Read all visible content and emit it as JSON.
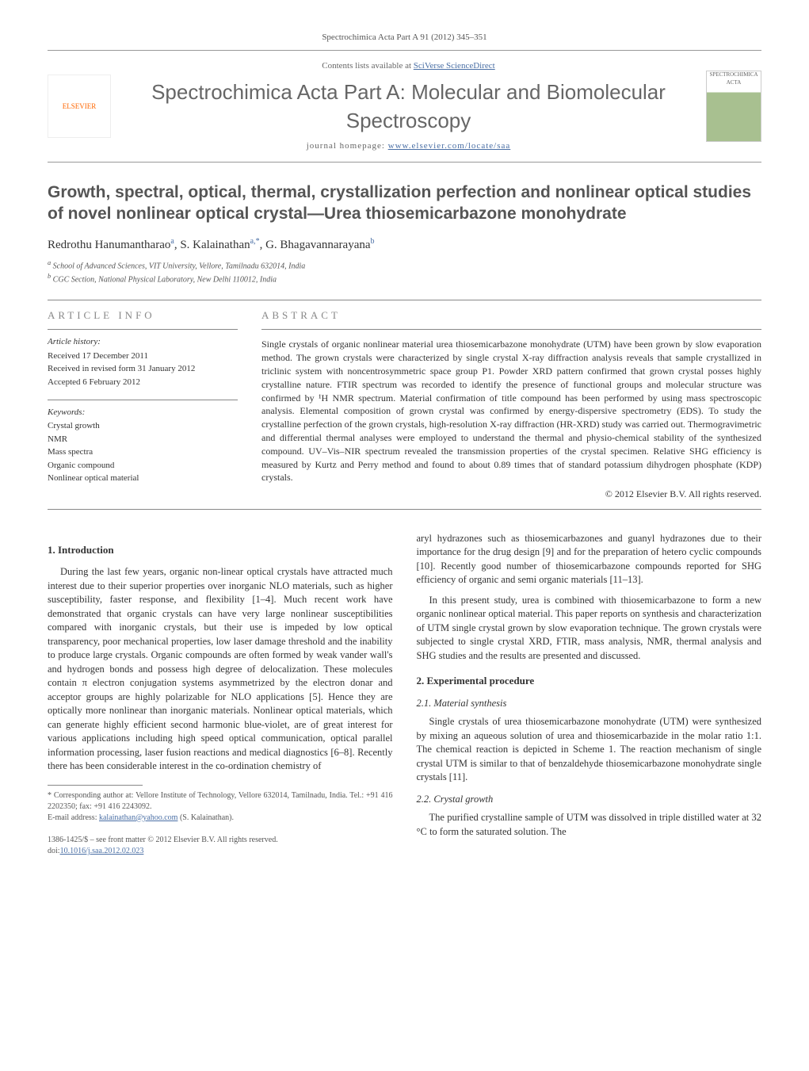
{
  "journal_ref": "Spectrochimica Acta Part A 91 (2012) 345–351",
  "header": {
    "contents_pre": "Contents lists available at ",
    "contents_link": "SciVerse ScienceDirect",
    "journal_title": "Spectrochimica Acta Part A: Molecular and Biomolecular Spectroscopy",
    "homepage_pre": "journal homepage: ",
    "homepage_link": "www.elsevier.com/locate/saa",
    "elsevier_label": "ELSEVIER",
    "cover_label": "SPECTROCHIMICA ACTA"
  },
  "title": "Growth, spectral, optical, thermal, crystallization perfection and nonlinear optical studies of novel nonlinear optical crystal—Urea thiosemicarbazone monohydrate",
  "authors": [
    {
      "name": "Redrothu Hanumantharao",
      "sup": "a"
    },
    {
      "name": "S. Kalainathan",
      "sup": "a,*"
    },
    {
      "name": "G. Bhagavannarayana",
      "sup": "b"
    }
  ],
  "affiliations": [
    {
      "sup": "a",
      "text": "School of Advanced Sciences, VIT University, Vellore, Tamilnadu 632014, India"
    },
    {
      "sup": "b",
      "text": "CGC Section, National Physical Laboratory, New Delhi 110012, India"
    }
  ],
  "article_info": {
    "header": "article info",
    "history_label": "Article history:",
    "history": [
      "Received 17 December 2011",
      "Received in revised form 31 January 2012",
      "Accepted 6 February 2012"
    ],
    "keywords_label": "Keywords:",
    "keywords": [
      "Crystal growth",
      "NMR",
      "Mass spectra",
      "Organic compound",
      "Nonlinear optical material"
    ]
  },
  "abstract": {
    "header": "abstract",
    "text": "Single crystals of organic nonlinear material urea thiosemicarbazone monohydrate (UTM) have been grown by slow evaporation method. The grown crystals were characterized by single crystal X-ray diffraction analysis reveals that sample crystallized in triclinic system with noncentrosymmetric space group P1. Powder XRD pattern confirmed that grown crystal posses highly crystalline nature. FTIR spectrum was recorded to identify the presence of functional groups and molecular structure was confirmed by ¹H NMR spectrum. Material confirmation of title compound has been performed by using mass spectroscopic analysis. Elemental composition of grown crystal was confirmed by energy-dispersive spectrometry (EDS). To study the crystalline perfection of the grown crystals, high-resolution X-ray diffraction (HR-XRD) study was carried out. Thermogravimetric and differential thermal analyses were employed to understand the thermal and physio-chemical stability of the synthesized compound. UV–Vis–NIR spectrum revealed the transmission properties of the crystal specimen. Relative SHG efficiency is measured by Kurtz and Perry method and found to about 0.89 times that of standard potassium dihydrogen phosphate (KDP) crystals.",
    "copyright": "© 2012 Elsevier B.V. All rights reserved."
  },
  "sections": {
    "intro_heading": "1. Introduction",
    "intro_p1": "During the last few years, organic non-linear optical crystals have attracted much interest due to their superior properties over inorganic NLO materials, such as higher susceptibility, faster response, and flexibility [1–4]. Much recent work have demonstrated that organic crystals can have very large nonlinear susceptibilities compared with inorganic crystals, but their use is impeded by low optical transparency, poor mechanical properties, low laser damage threshold and the inability to produce large crystals. Organic compounds are often formed by weak vander wall's and hydrogen bonds and possess high degree of delocalization. These molecules contain π electron conjugation systems asymmetrized by the electron donar and acceptor groups are highly polarizable for NLO applications [5]. Hence they are optically more nonlinear than inorganic materials. Nonlinear optical materials, which can generate highly efficient second harmonic blue-violet, are of great interest for various applications including high speed optical communication, optical parallel information processing, laser fusion reactions and medical diagnostics [6–8]. Recently there has been considerable interest in the co-ordination chemistry of",
    "intro_p2": "aryl hydrazones such as thiosemicarbazones and guanyl hydrazones due to their importance for the drug design [9] and for the preparation of hetero cyclic compounds [10]. Recently good number of thiosemicarbazone compounds reported for SHG efficiency of organic and semi organic materials [11–13].",
    "intro_p3": "In this present study, urea is combined with thiosemicarbazone to form a new organic nonlinear optical material. This paper reports on synthesis and characterization of UTM single crystal grown by slow evaporation technique. The grown crystals were subjected to single crystal XRD, FTIR, mass analysis, NMR, thermal analysis and SHG studies and the results are presented and discussed.",
    "exp_heading": "2. Experimental procedure",
    "sub21_heading": "2.1. Material synthesis",
    "sub21_p": "Single crystals of urea thiosemicarbazone monohydrate (UTM) were synthesized by mixing an aqueous solution of urea and thiosemicarbazide in the molar ratio 1:1. The chemical reaction is depicted in Scheme 1. The reaction mechanism of single crystal UTM is similar to that of benzaldehyde thiosemicarbazone monohydrate single crystals [11].",
    "sub22_heading": "2.2. Crystal growth",
    "sub22_p": "The purified crystalline sample of UTM was dissolved in triple distilled water at 32 °C to form the saturated solution. The"
  },
  "footnote": {
    "corr": "* Corresponding author at: Vellore Institute of Technology, Vellore 632014, Tamilnadu, India. Tel.: +91 416 2202350; fax: +91 416 2243092.",
    "email_label": "E-mail address: ",
    "email": "kalainathan@yahoo.com",
    "email_suffix": " (S. Kalainathan)."
  },
  "footer": {
    "line1": "1386-1425/$ – see front matter © 2012 Elsevier B.V. All rights reserved.",
    "doi_pre": "doi:",
    "doi": "10.1016/j.saa.2012.02.023"
  },
  "colors": {
    "link": "#4a6fa5",
    "text": "#333333",
    "muted": "#666666",
    "rule": "#888888"
  }
}
